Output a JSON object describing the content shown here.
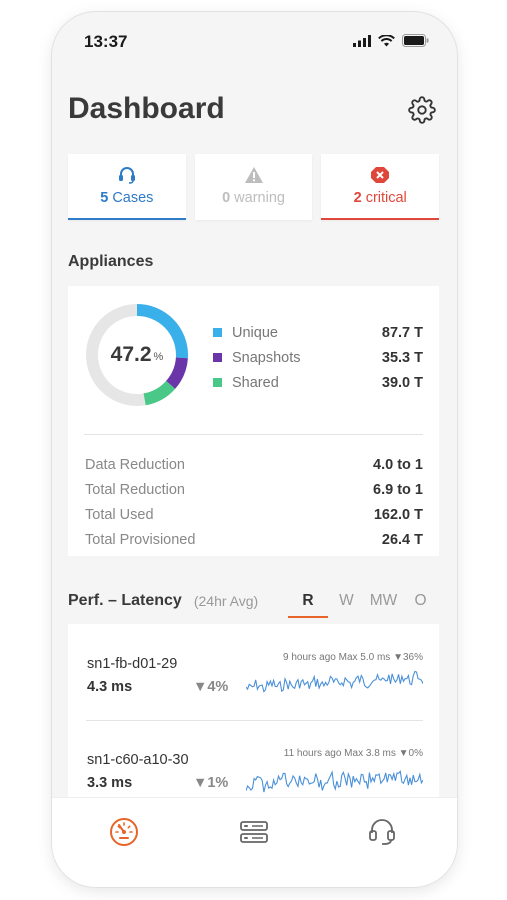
{
  "status_bar": {
    "time": "13:37"
  },
  "header": {
    "title": "Dashboard",
    "settings_icon": "gear-icon"
  },
  "alerts": [
    {
      "icon": "headset-icon",
      "count": "5",
      "label": "Cases",
      "color": "#2e7bc7"
    },
    {
      "icon": "warning-icon",
      "count": "0",
      "label": "warning",
      "color": "#bdbdbd"
    },
    {
      "icon": "critical-icon",
      "count": "2",
      "label": "critical",
      "color": "#e0473b"
    }
  ],
  "appliances": {
    "title": "Appliances",
    "donut": {
      "value": "47.2",
      "unit": "%",
      "segments": [
        {
          "name": "Unique",
          "percent": 26,
          "color": "#3ab0ea"
        },
        {
          "name": "Snapshots",
          "percent": 10.5,
          "color": "#6a35a8"
        },
        {
          "name": "Shared",
          "percent": 10.7,
          "color": "#4ac888"
        }
      ],
      "track_color": "#e6e6e6"
    },
    "legend": [
      {
        "label": "Unique",
        "value": "87.7 T",
        "color": "#3ab0ea"
      },
      {
        "label": "Snapshots",
        "value": "35.3 T",
        "color": "#6a35a8"
      },
      {
        "label": "Shared",
        "value": "39.0 T",
        "color": "#4ac888"
      }
    ],
    "stats": [
      {
        "label": "Data Reduction",
        "value": "4.0 to 1"
      },
      {
        "label": "Total Reduction",
        "value": "6.9 to 1"
      },
      {
        "label": "Total Used",
        "value": "162.0 T"
      },
      {
        "label": "Total Provisioned",
        "value": "26.4 T"
      }
    ]
  },
  "performance": {
    "title": "Perf. – Latency",
    "subtitle": "(24hr Avg)",
    "tabs": [
      "R",
      "W",
      "MW",
      "O"
    ],
    "active_tab": "R",
    "rows": [
      {
        "host": "sn1-fb-d01-29",
        "latency": "4.3 ms",
        "change": "▼4%",
        "meta": "9 hours ago Max 5.0 ms ▼36%"
      },
      {
        "host": "sn1-c60-a10-30",
        "latency": "3.3 ms",
        "change": "▼1%",
        "meta": "11 hours ago Max 3.8 ms ▼0%"
      }
    ],
    "accent_color": "#e8652a",
    "sparkline_color": "#4a90d9"
  },
  "bottom_nav": [
    {
      "name": "dashboard",
      "icon": "speedometer-icon",
      "active": true
    },
    {
      "name": "appliances",
      "icon": "server-icon",
      "active": false
    },
    {
      "name": "support",
      "icon": "headset-icon",
      "active": false
    }
  ]
}
